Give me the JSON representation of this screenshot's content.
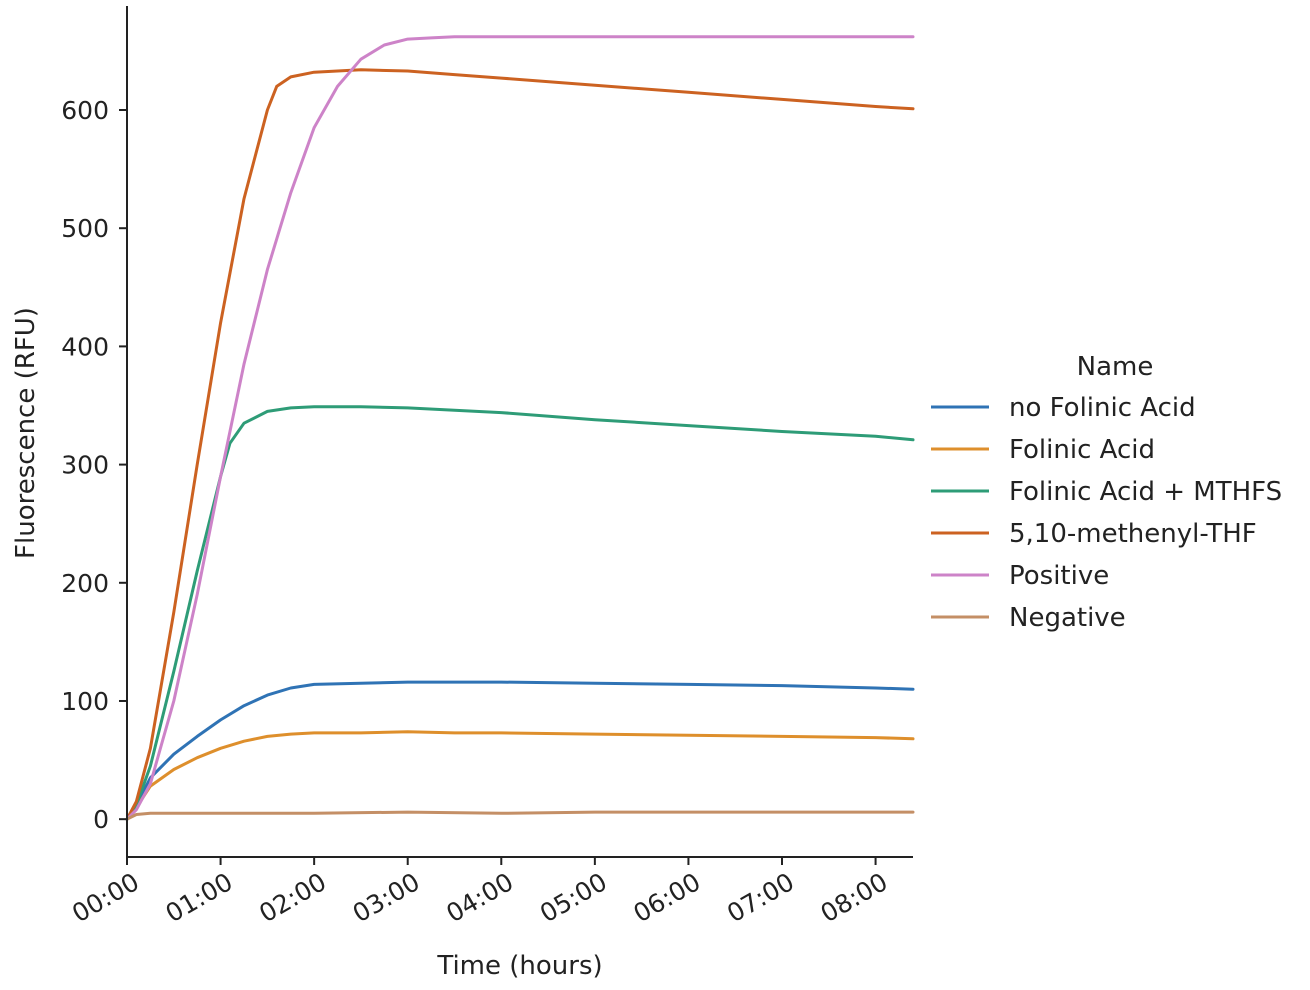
{
  "chart_data": {
    "type": "line",
    "xlabel": "Time (hours)",
    "ylabel": "Fluorescence (RFU)",
    "x_unit": "hours",
    "xlim": [
      0,
      8.4
    ],
    "ylim": [
      -32,
      688
    ],
    "x_ticks": [
      {
        "value": 0,
        "label": "00:00"
      },
      {
        "value": 1,
        "label": "01:00"
      },
      {
        "value": 2,
        "label": "02:00"
      },
      {
        "value": 3,
        "label": "03:00"
      },
      {
        "value": 4,
        "label": "04:00"
      },
      {
        "value": 5,
        "label": "05:00"
      },
      {
        "value": 6,
        "label": "06:00"
      },
      {
        "value": 7,
        "label": "07:00"
      },
      {
        "value": 8,
        "label": "08:00"
      }
    ],
    "y_ticks": [
      {
        "value": 0,
        "label": "0"
      },
      {
        "value": 100,
        "label": "100"
      },
      {
        "value": 200,
        "label": "200"
      },
      {
        "value": 300,
        "label": "300"
      },
      {
        "value": 400,
        "label": "400"
      },
      {
        "value": 500,
        "label": "500"
      },
      {
        "value": 600,
        "label": "600"
      }
    ],
    "grid": false,
    "legend": {
      "title": "Name",
      "placement": "right"
    },
    "series": [
      {
        "name": "no Folinic Acid",
        "color": "#2f73b5",
        "x": [
          0,
          0.1,
          0.25,
          0.5,
          0.75,
          1.0,
          1.25,
          1.5,
          1.75,
          2.0,
          2.5,
          3.0,
          3.5,
          4.0,
          5.0,
          6.0,
          7.0,
          8.0,
          8.4
        ],
        "y": [
          0,
          12,
          35,
          55,
          70,
          84,
          96,
          105,
          111,
          114,
          115,
          116,
          116,
          116,
          115,
          114,
          113,
          111,
          110
        ]
      },
      {
        "name": "Folinic Acid",
        "color": "#de8f2c",
        "x": [
          0,
          0.1,
          0.25,
          0.5,
          0.75,
          1.0,
          1.25,
          1.5,
          1.75,
          2.0,
          2.5,
          3.0,
          3.5,
          4.0,
          5.0,
          6.0,
          7.0,
          8.0,
          8.4
        ],
        "y": [
          0,
          10,
          28,
          42,
          52,
          60,
          66,
          70,
          72,
          73,
          73,
          74,
          73,
          73,
          72,
          71,
          70,
          69,
          68
        ]
      },
      {
        "name": "Folinic Acid + MTHFS",
        "color": "#2e9c77",
        "x": [
          0,
          0.1,
          0.25,
          0.5,
          0.75,
          1.0,
          1.1,
          1.25,
          1.5,
          1.75,
          2.0,
          2.5,
          3.0,
          3.5,
          4.0,
          5.0,
          6.0,
          7.0,
          8.0,
          8.4
        ],
        "y": [
          0,
          12,
          45,
          125,
          210,
          290,
          318,
          335,
          345,
          348,
          349,
          349,
          348,
          346,
          344,
          338,
          333,
          328,
          324,
          321
        ]
      },
      {
        "name": "5,10-methenyl-THF",
        "color": "#cc6221",
        "x": [
          0,
          0.1,
          0.25,
          0.5,
          0.75,
          1.0,
          1.25,
          1.5,
          1.6,
          1.75,
          2.0,
          2.5,
          3.0,
          3.5,
          4.0,
          5.0,
          6.0,
          7.0,
          8.0,
          8.4
        ],
        "y": [
          0,
          15,
          60,
          175,
          300,
          420,
          525,
          600,
          620,
          628,
          632,
          634,
          633,
          630,
          627,
          621,
          615,
          609,
          603,
          601
        ]
      },
      {
        "name": "Positive",
        "color": "#cd83c8",
        "x": [
          0,
          0.1,
          0.25,
          0.5,
          0.75,
          1.0,
          1.25,
          1.5,
          1.75,
          2.0,
          2.25,
          2.5,
          2.75,
          3.0,
          3.25,
          3.5,
          4.0,
          5.0,
          6.0,
          7.0,
          8.0,
          8.4
        ],
        "y": [
          0,
          8,
          30,
          100,
          190,
          290,
          385,
          465,
          530,
          585,
          620,
          643,
          655,
          660,
          661,
          662,
          662,
          662,
          662,
          662,
          662,
          662
        ]
      },
      {
        "name": "Negative",
        "color": "#c48f66",
        "x": [
          0,
          0.1,
          0.25,
          0.5,
          1.0,
          2.0,
          3.0,
          4.0,
          5.0,
          6.0,
          7.0,
          8.0,
          8.4
        ],
        "y": [
          0,
          4,
          5,
          5,
          5,
          5,
          6,
          5,
          6,
          6,
          6,
          6,
          6
        ]
      }
    ]
  }
}
